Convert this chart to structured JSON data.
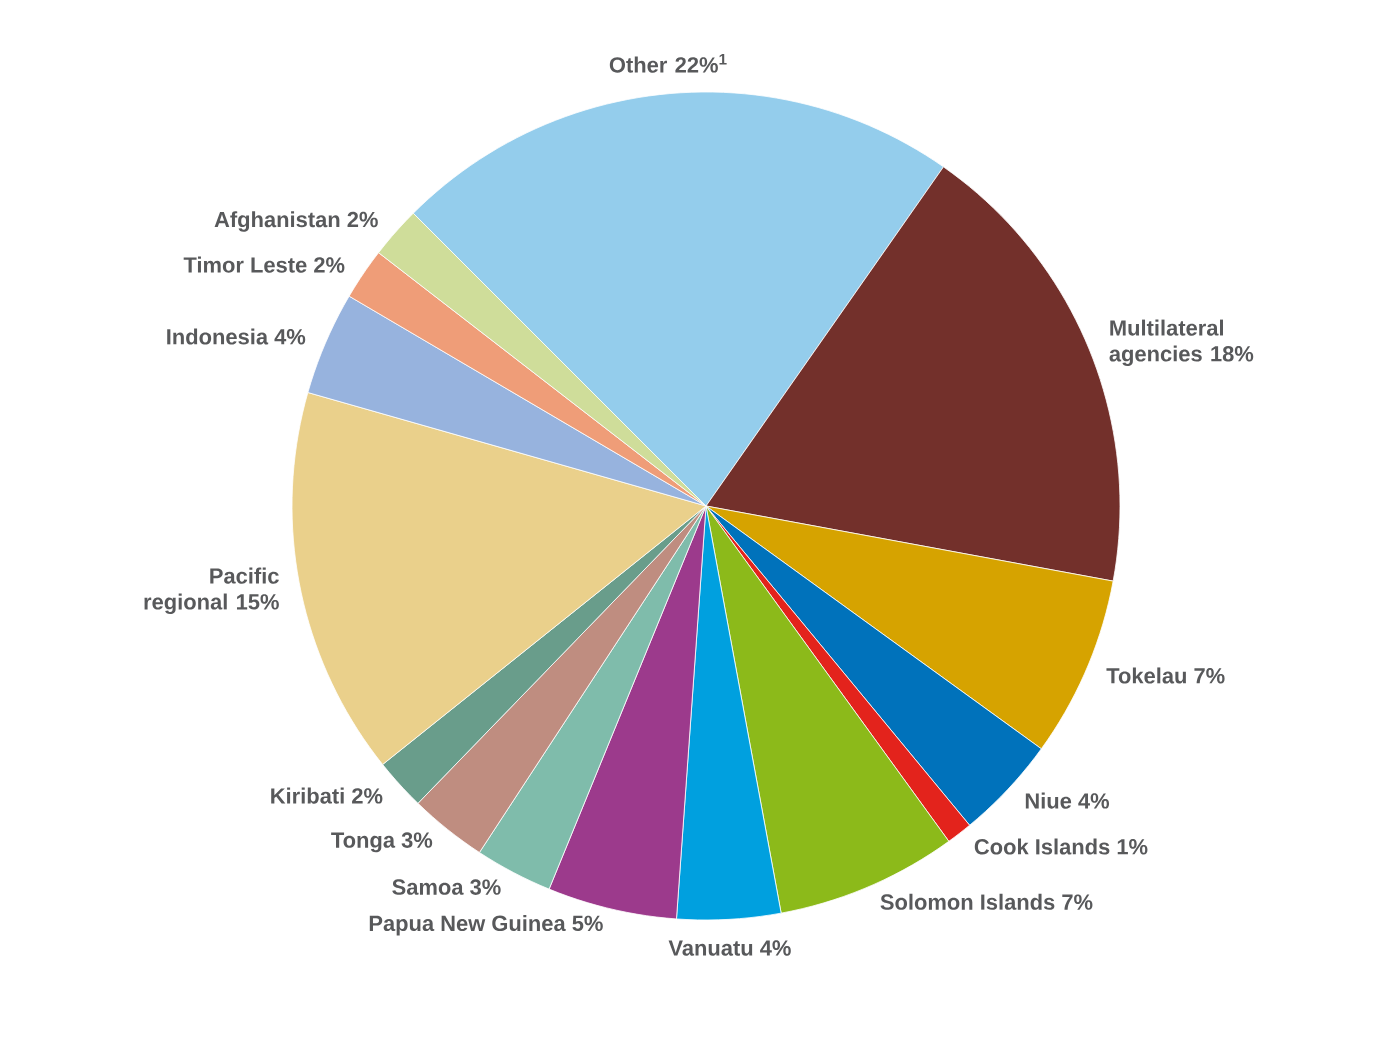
{
  "chart_data": {
    "type": "pie",
    "categories": [
      "Other 22%$^{1}$",
      "Multilateral agencies 18%",
      "Tokelau 7%",
      "Niue 4%",
      "Cook Islands 1%",
      "Solomon Islands 7%",
      "Vanuatu 4%",
      "Papua New Guinea 5%",
      "Samoa 3%",
      "Tonga 3%",
      "Kiribati 2%",
      "Pacific regional 15%",
      "Indonesia 4%",
      "Timor Leste 2%",
      "Afghanistan 2%"
    ],
    "values": [
      22,
      18,
      7,
      4,
      1,
      7,
      4,
      5,
      3,
      3,
      2,
      15,
      4,
      2,
      2
    ],
    "colors": [
      "#94cdec",
      "#73302b",
      "#d6a300",
      "#0072bb",
      "#e3231c",
      "#8cba1a",
      "#00a0df",
      "#9c3a8c",
      "#7fbcab",
      "#bf8d80",
      "#699d8b",
      "#ead08b",
      "#97b3de",
      "#ef9d78",
      "#cfdd9a"
    ]
  }
}
